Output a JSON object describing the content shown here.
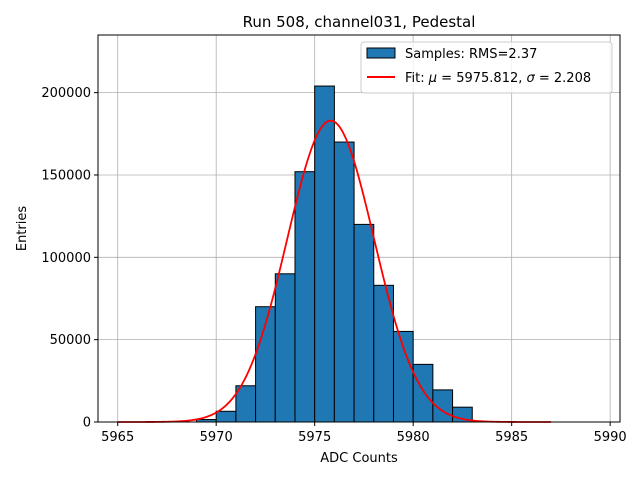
{
  "chart_data": {
    "type": "bar",
    "title": "Run 508, channel031, Pedestal",
    "xlabel": "ADC Counts",
    "ylabel": "Entries",
    "xlim": [
      5964,
      5990.5
    ],
    "ylim": [
      0,
      235000
    ],
    "x_ticks": [
      5965,
      5970,
      5975,
      5980,
      5985,
      5990
    ],
    "x_tick_labels": [
      "5965",
      "5970",
      "5975",
      "5980",
      "5985",
      "5990"
    ],
    "y_ticks": [
      0,
      50000,
      100000,
      150000,
      200000
    ],
    "y_tick_labels": [
      "0",
      "50000",
      "100000",
      "150000",
      "200000"
    ],
    "grid": true,
    "legend_position": "top-right",
    "bar_color": "#1f77b4",
    "fit_color": "#ff0000",
    "histogram": {
      "name": "Samples: RMS=2.37",
      "bins": [
        {
          "x0": 5969,
          "x1": 5970,
          "value": 1500
        },
        {
          "x0": 5970,
          "x1": 5971,
          "value": 6500
        },
        {
          "x0": 5971,
          "x1": 5972,
          "value": 22000
        },
        {
          "x0": 5972,
          "x1": 5973,
          "value": 70000
        },
        {
          "x0": 5973,
          "x1": 5974,
          "value": 90000
        },
        {
          "x0": 5974,
          "x1": 5975,
          "value": 152000
        },
        {
          "x0": 5975,
          "x1": 5976,
          "value": 204000
        },
        {
          "x0": 5976,
          "x1": 5977,
          "value": 170000
        },
        {
          "x0": 5977,
          "x1": 5978,
          "value": 120000
        },
        {
          "x0": 5978,
          "x1": 5979,
          "value": 83000
        },
        {
          "x0": 5979,
          "x1": 5980,
          "value": 55000
        },
        {
          "x0": 5980,
          "x1": 5981,
          "value": 35000
        },
        {
          "x0": 5981,
          "x1": 5982,
          "value": 19500
        },
        {
          "x0": 5982,
          "x1": 5983,
          "value": 9000
        }
      ]
    },
    "fit": {
      "name_prefix": "Fit: ",
      "mu_symbol": "μ",
      "mu_text": " = 5975.812, ",
      "sigma_symbol": "σ",
      "sigma_text": " = 2.208",
      "mu": 5975.812,
      "sigma": 2.208,
      "amplitude": 183000,
      "x_range": [
        5965,
        5987
      ]
    }
  }
}
